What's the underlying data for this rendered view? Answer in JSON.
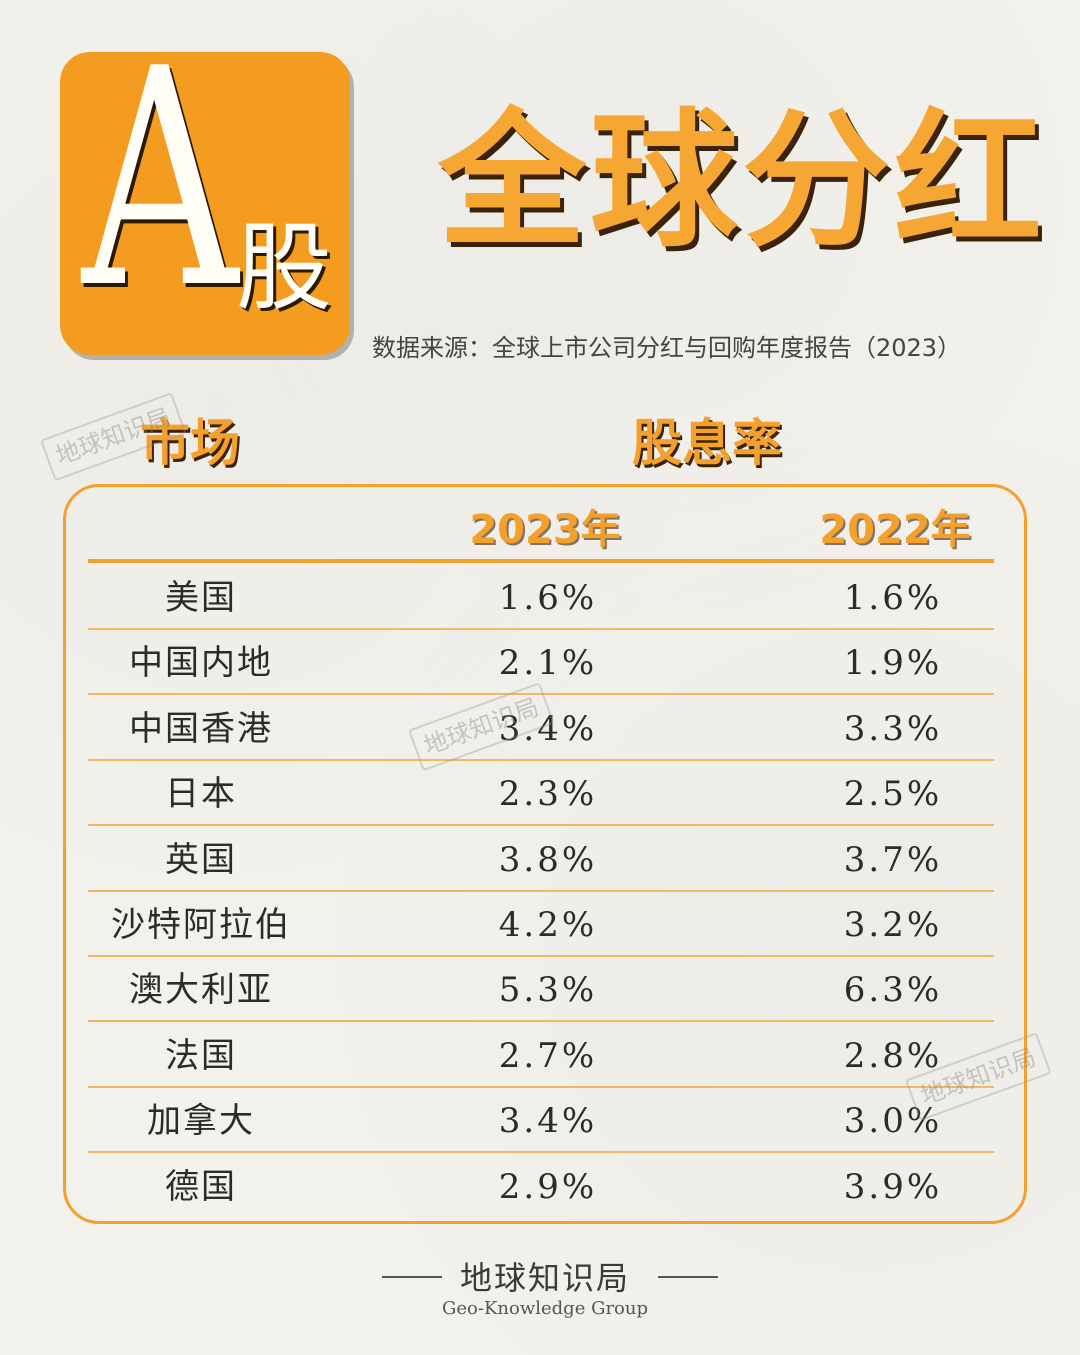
{
  "logo": {
    "letter": "A",
    "char": "股"
  },
  "title": "全球分红",
  "source": "数据来源：全球上市公司分红与回购年度报告（2023）",
  "header": {
    "market": "市场",
    "yield": "股息率"
  },
  "watermark": "地球知识局",
  "footer": {
    "name": "地球知识局",
    "en": "Geo-Knowledge Group"
  },
  "colors": {
    "accent": "#f3a02d",
    "logo_bg": "#f39c1f",
    "background": "#f3f1ec"
  },
  "chart_data": {
    "type": "table",
    "columns": [
      "2023年",
      "2022年"
    ],
    "rows": [
      {
        "market": "美国",
        "v2023": "1.6%",
        "v2022": "1.6%"
      },
      {
        "market": "中国内地",
        "v2023": "2.1%",
        "v2022": "1.9%"
      },
      {
        "market": "中国香港",
        "v2023": "3.4%",
        "v2022": "3.3%"
      },
      {
        "market": "日本",
        "v2023": "2.3%",
        "v2022": "2.5%"
      },
      {
        "market": "英国",
        "v2023": "3.8%",
        "v2022": "3.7%"
      },
      {
        "market": "沙特阿拉伯",
        "v2023": "4.2%",
        "v2022": "3.2%"
      },
      {
        "market": "澳大利亚",
        "v2023": "5.3%",
        "v2022": "6.3%"
      },
      {
        "market": "法国",
        "v2023": "2.7%",
        "v2022": "2.8%"
      },
      {
        "market": "加拿大",
        "v2023": "3.4%",
        "v2022": "3.0%"
      },
      {
        "market": "德国",
        "v2023": "2.9%",
        "v2022": "3.9%"
      }
    ]
  }
}
